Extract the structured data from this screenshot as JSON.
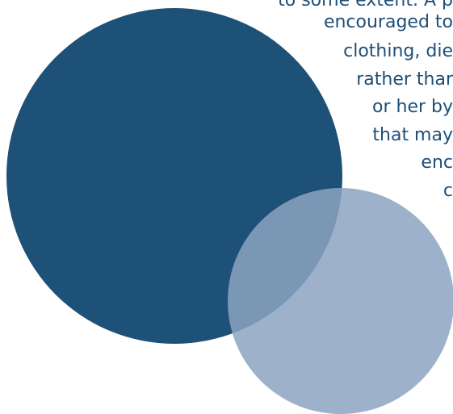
{
  "text_lines": [
    "to some extent. A p",
    "encouraged to",
    "clothing, die",
    "rather thar",
    "or her by",
    "that may",
    "enc",
    "c"
  ],
  "colors": {
    "text": "#1f4f77",
    "large_circle": "#1e5178",
    "small_circle": "#8ca3c1",
    "background": "#ffffff"
  }
}
